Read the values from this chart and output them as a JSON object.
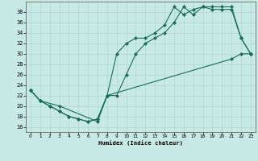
{
  "xlabel": "Humidex (Indice chaleur)",
  "xlim": [
    -0.5,
    23.5
  ],
  "ylim": [
    15,
    40
  ],
  "yticks": [
    16,
    18,
    20,
    22,
    24,
    26,
    28,
    30,
    32,
    34,
    36,
    38
  ],
  "xticks": [
    0,
    1,
    2,
    3,
    4,
    5,
    6,
    7,
    8,
    9,
    10,
    11,
    12,
    13,
    14,
    15,
    16,
    17,
    18,
    19,
    20,
    21,
    22,
    23
  ],
  "bg_color": "#c8eae4",
  "line_color": "#1a6b5a",
  "grid_color": "#aed8d0",
  "line1_x": [
    0,
    1,
    2,
    3,
    4,
    5,
    6,
    7,
    8,
    9,
    10,
    11,
    12,
    13,
    14,
    15,
    16,
    17,
    18,
    19,
    20,
    21,
    22,
    23
  ],
  "line1_y": [
    23,
    21,
    20,
    19,
    18,
    17.5,
    17,
    17.5,
    22,
    22,
    26,
    30,
    32,
    33,
    34,
    36,
    39,
    37.5,
    39,
    38.5,
    38.5,
    38.5,
    33,
    30
  ],
  "line2_x": [
    0,
    1,
    2,
    3,
    4,
    5,
    6,
    7,
    8,
    9,
    10,
    11,
    12,
    13,
    14,
    15,
    16,
    17,
    18,
    19,
    20,
    21,
    22,
    23
  ],
  "line2_y": [
    23,
    21,
    20,
    19,
    18,
    17.5,
    17,
    17.5,
    22,
    30,
    32,
    33,
    33,
    34,
    35.5,
    39,
    37.5,
    38.5,
    39,
    39,
    39,
    39,
    33,
    30
  ],
  "line3_x": [
    0,
    1,
    3,
    7,
    8,
    21,
    22,
    23
  ],
  "line3_y": [
    23,
    21,
    20,
    17,
    22,
    29,
    30,
    30
  ]
}
